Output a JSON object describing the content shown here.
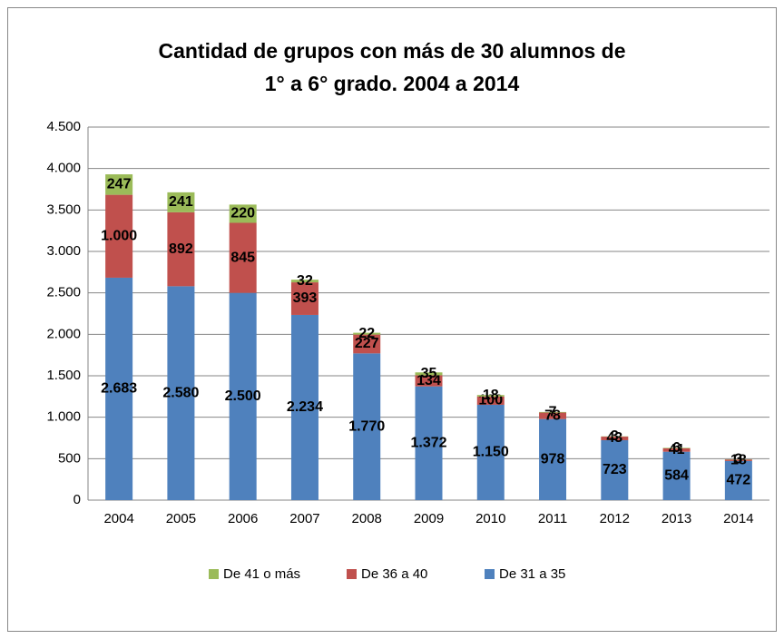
{
  "chart_data": {
    "type": "bar",
    "stacked": true,
    "title": "Cantidad de grupos con más de 30 alumnos de 1° a 6° grado. 2004 a 2014",
    "categories": [
      "2004",
      "2005",
      "2006",
      "2007",
      "2008",
      "2009",
      "2010",
      "2011",
      "2012",
      "2013",
      "2014"
    ],
    "series": [
      {
        "name": "De 31 a 35",
        "color": "#4f81bd",
        "values": [
          2683,
          2580,
          2500,
          2234,
          1770,
          1372,
          1150,
          978,
          723,
          584,
          472
        ],
        "value_labels": [
          "2.683",
          "2.580",
          "2.500",
          "2.234",
          "1.770",
          "1.372",
          "1.150",
          "978",
          "723",
          "584",
          "472"
        ]
      },
      {
        "name": "De 36 a 40",
        "color": "#c0504d",
        "values": [
          1000,
          892,
          845,
          393,
          227,
          134,
          100,
          78,
          43,
          41,
          18
        ],
        "value_labels": [
          "1.000",
          "892",
          "845",
          "393",
          "227",
          "134",
          "100",
          "78",
          "43",
          "41",
          "18"
        ]
      },
      {
        "name": "De 41 o más",
        "color": "#9bbb59",
        "values": [
          247,
          241,
          220,
          32,
          22,
          35,
          18,
          7,
          3,
          6,
          3
        ],
        "value_labels": [
          "247",
          "241",
          "220",
          "32",
          "22",
          "35",
          "18",
          "7",
          "3",
          "6",
          "3"
        ]
      }
    ],
    "ylim": [
      0,
      4500
    ],
    "yticks": [
      0,
      500,
      {
        "value": 1000,
        "label": "1.000"
      },
      {
        "value": 1500,
        "label": "1.500"
      },
      {
        "value": 2000,
        "label": "2.000"
      },
      {
        "value": 2500,
        "label": "2.500"
      },
      {
        "value": 3000,
        "label": "3.000"
      },
      {
        "value": 3500,
        "label": "3.500"
      },
      {
        "value": 4000,
        "label": "4.000"
      },
      {
        "value": 4500,
        "label": "4.500"
      }
    ],
    "grid": true,
    "legend": "bottom"
  }
}
